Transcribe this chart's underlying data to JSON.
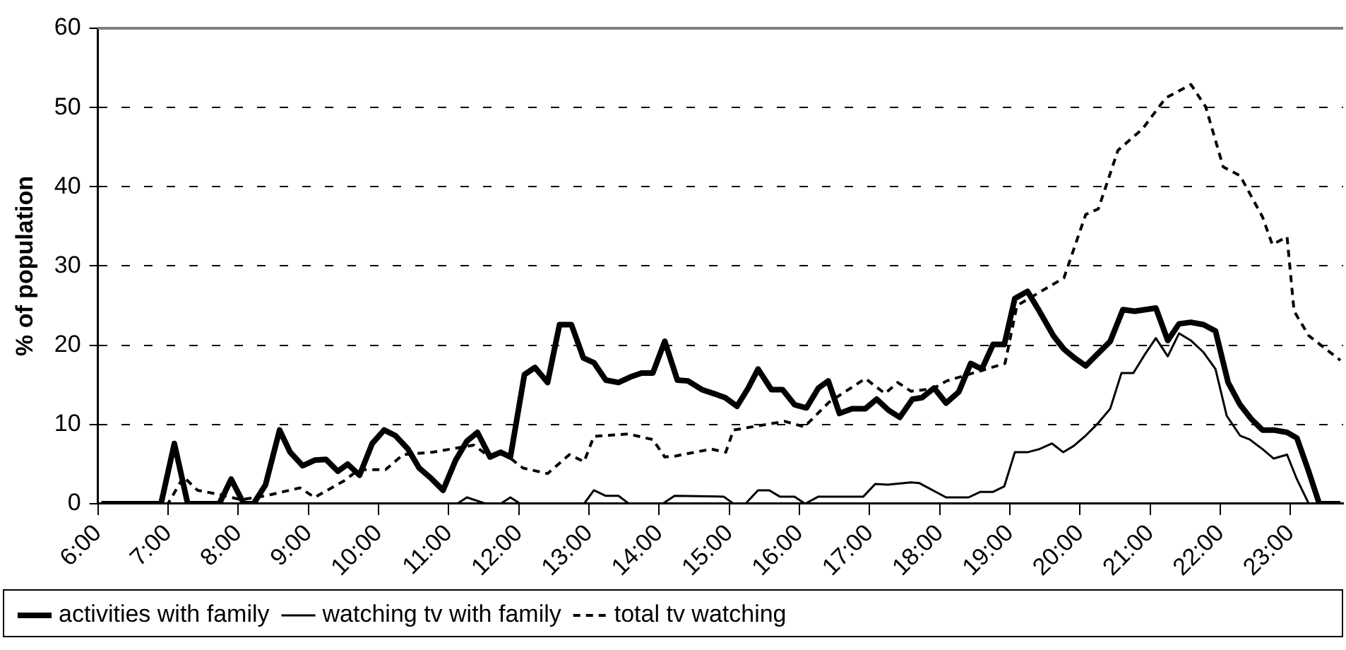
{
  "chart_data": {
    "type": "line",
    "ylabel": "% of population",
    "xlim": [
      6,
      23.75
    ],
    "ylim": [
      0,
      60
    ],
    "xticks": [
      {
        "value": 6,
        "label": "6:00"
      },
      {
        "value": 7,
        "label": "7:00"
      },
      {
        "value": 8,
        "label": "8:00"
      },
      {
        "value": 9,
        "label": "9:00"
      },
      {
        "value": 10,
        "label": "10:00"
      },
      {
        "value": 11,
        "label": "11:00"
      },
      {
        "value": 12,
        "label": "12:00"
      },
      {
        "value": 13,
        "label": "13:00"
      },
      {
        "value": 14,
        "label": "14:00"
      },
      {
        "value": 15,
        "label": "15:00"
      },
      {
        "value": 16,
        "label": "16:00"
      },
      {
        "value": 17,
        "label": "17:00"
      },
      {
        "value": 18,
        "label": "18:00"
      },
      {
        "value": 19,
        "label": "19:00"
      },
      {
        "value": 20,
        "label": "20:00"
      },
      {
        "value": 21,
        "label": "21:00"
      },
      {
        "value": 22,
        "label": "22:00"
      },
      {
        "value": 23,
        "label": "23:00"
      }
    ],
    "yticks": [
      0,
      10,
      20,
      30,
      40,
      50,
      60
    ],
    "grid": "y",
    "legend": "bottom",
    "marker": "none",
    "series": [
      {
        "name": "activities with family",
        "color": "#000000",
        "line_style": "solid",
        "x": [
          6.05,
          6.9,
          7.09,
          7.28,
          7.73,
          7.9,
          8.08,
          8.22,
          8.39,
          8.59,
          8.74,
          8.92,
          9.09,
          9.25,
          9.42,
          9.56,
          9.73,
          9.91,
          10.08,
          10.24,
          10.42,
          10.58,
          10.75,
          10.92,
          11.1,
          11.26,
          11.41,
          11.59,
          11.74,
          11.88,
          12.08,
          12.23,
          12.41,
          12.58,
          12.75,
          12.92,
          13.07,
          13.24,
          13.42,
          13.59,
          13.75,
          13.91,
          14.08,
          14.26,
          14.41,
          14.61,
          14.78,
          14.94,
          15.11,
          15.27,
          15.41,
          15.6,
          15.76,
          15.93,
          16.1,
          16.27,
          16.41,
          16.57,
          16.75,
          16.94,
          17.1,
          17.27,
          17.43,
          17.61,
          17.75,
          17.92,
          18.09,
          18.27,
          18.44,
          18.6,
          18.76,
          18.92,
          19.07,
          19.25,
          19.42,
          19.62,
          19.77,
          19.92,
          20.08,
          20.26,
          20.43,
          20.61,
          20.78,
          21.08,
          21.25,
          21.41,
          21.58,
          21.76,
          21.93,
          22.11,
          22.28,
          22.44,
          22.6,
          22.76,
          22.95,
          23.09,
          23.25,
          23.41,
          23.71
        ],
        "values": [
          0,
          0,
          7.6,
          0,
          0,
          3.1,
          0,
          0,
          2.4,
          9.3,
          6.5,
          4.8,
          5.5,
          5.6,
          4.1,
          5,
          3.6,
          7.6,
          9.3,
          8.6,
          6.9,
          4.5,
          3.2,
          1.7,
          5.5,
          7.9,
          9,
          5.9,
          6.5,
          5.9,
          16.3,
          17.2,
          15.3,
          22.6,
          22.6,
          18.4,
          17.8,
          15.6,
          15.3,
          16,
          16.5,
          16.5,
          20.5,
          15.6,
          15.5,
          14.4,
          13.9,
          13.4,
          12.3,
          14.6,
          17,
          14.4,
          14.4,
          12.5,
          12.1,
          14.6,
          15.5,
          11.4,
          12,
          12,
          13.2,
          11.8,
          10.9,
          13.2,
          13.4,
          14.6,
          12.7,
          14.1,
          17.7,
          17,
          20.1,
          20.1,
          25.9,
          26.8,
          24.3,
          21.2,
          19.5,
          18.4,
          17.4,
          19,
          20.5,
          24.5,
          24.3,
          24.7,
          20.6,
          22.7,
          22.9,
          22.6,
          21.8,
          15.3,
          12.5,
          10.7,
          9.3,
          9.3,
          9,
          8.3,
          4.3,
          0,
          0
        ]
      },
      {
        "name": "watching tv with family",
        "color": "#000000",
        "line_style": "solid",
        "x": [
          6.05,
          11.12,
          11.26,
          11.53,
          11.74,
          11.88,
          12.02,
          12.93,
          13.07,
          13.24,
          13.42,
          13.57,
          14.05,
          14.22,
          14.92,
          15.06,
          15.23,
          15.41,
          15.57,
          15.72,
          15.93,
          16.08,
          16.27,
          16.91,
          17.08,
          17.26,
          17.59,
          17.71,
          18.09,
          18.41,
          18.58,
          18.76,
          18.92,
          19.07,
          19.25,
          19.42,
          19.6,
          19.76,
          19.91,
          20.08,
          20.26,
          20.43,
          20.59,
          20.76,
          20.92,
          21.08,
          21.25,
          21.41,
          21.58,
          21.76,
          21.93,
          22.09,
          22.28,
          22.42,
          22.6,
          22.76,
          22.95,
          23.09,
          23.26,
          23.71
        ],
        "values": [
          0,
          0,
          0.8,
          0,
          0,
          0.8,
          0,
          0,
          1.7,
          1,
          1,
          0,
          0,
          1,
          0.9,
          0,
          0,
          1.7,
          1.7,
          0.9,
          0.9,
          0,
          0.9,
          0.9,
          2.5,
          2.4,
          2.7,
          2.6,
          0.8,
          0.8,
          1.5,
          1.5,
          2.2,
          6.5,
          6.5,
          6.9,
          7.6,
          6.5,
          7.3,
          8.6,
          10.2,
          12,
          16.5,
          16.5,
          18.8,
          20.9,
          18.6,
          21.5,
          20.6,
          19.1,
          17,
          11.1,
          8.6,
          8.1,
          6.9,
          5.7,
          6.2,
          3.1,
          0,
          0
        ]
      },
      {
        "name": "total tv watching",
        "color": "#000000",
        "line_style": "dashed",
        "x": [
          6.05,
          7.0,
          7.22,
          7.42,
          7.77,
          8.04,
          8.39,
          8.88,
          9.09,
          9.51,
          9.72,
          10.1,
          10.35,
          10.77,
          11.36,
          11.57,
          11.74,
          12.06,
          12.41,
          12.72,
          12.93,
          13.07,
          13.56,
          13.91,
          14.08,
          14.22,
          14.74,
          14.95,
          15.06,
          15.79,
          16.07,
          16.42,
          16.94,
          17.22,
          17.4,
          17.59,
          17.9,
          18.1,
          18.93,
          19.1,
          19.77,
          20.08,
          20.26,
          20.54,
          20.89,
          21.22,
          21.58,
          21.79,
          22.04,
          22.28,
          22.6,
          22.74,
          22.95,
          23.05,
          23.26,
          23.71
        ],
        "values": [
          0,
          0,
          3.4,
          1.7,
          1.1,
          0.5,
          1,
          2,
          0.8,
          2.9,
          4.3,
          4.3,
          6.2,
          6.5,
          7.4,
          6,
          6.7,
          4.5,
          3.8,
          6.2,
          5.3,
          8.5,
          8.8,
          8.1,
          5.9,
          6,
          6.9,
          6.5,
          9.3,
          10.4,
          9.7,
          12.8,
          15.8,
          13.9,
          15.3,
          14.2,
          14.5,
          15.5,
          17.7,
          25,
          28.5,
          36.5,
          37.2,
          44.6,
          47.3,
          51.2,
          52.9,
          50.1,
          42.5,
          41.4,
          36.2,
          32.7,
          33.7,
          24.3,
          21.2,
          18.1
        ]
      }
    ]
  }
}
